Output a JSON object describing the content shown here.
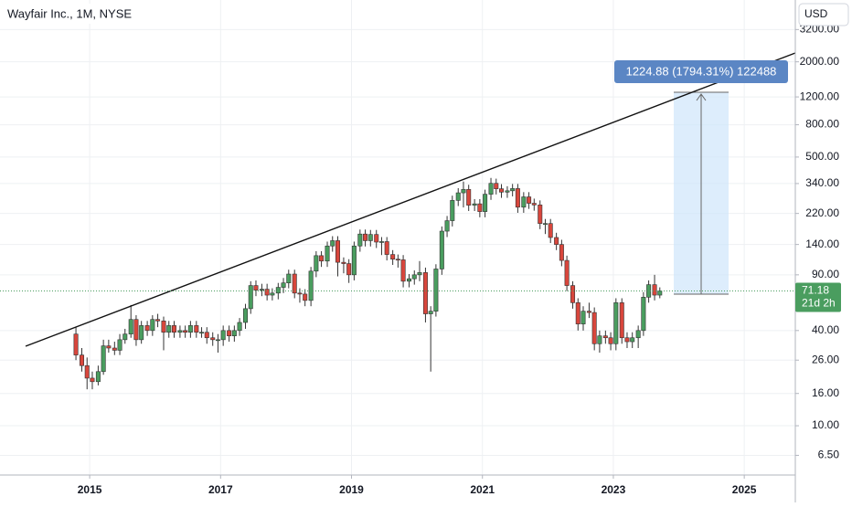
{
  "chart_data": {
    "type": "candlestick",
    "title": "Wayfair Inc., 1M, NYSE",
    "currency": "USD",
    "annotations": [
      "1224.88 (1794.31%) 122488"
    ],
    "last_price": 71.18,
    "countdown": "21d 2h",
    "log_scale": true,
    "grid": true,
    "up_color": "#4a9d5f",
    "down_color": "#d8463c",
    "wick_color": "#333333",
    "xlim": [
      2013.63,
      2025.78
    ],
    "xticks": [
      2015,
      2017,
      2019,
      2021,
      2023,
      2025
    ],
    "ylim": [
      4.88,
      4920
    ],
    "yticks": [
      {
        "value": 3200,
        "label": "3200.00"
      },
      {
        "value": 2000,
        "label": "2000.00"
      },
      {
        "value": 1200,
        "label": "1200.00"
      },
      {
        "value": 800,
        "label": "800.00"
      },
      {
        "value": 500,
        "label": "500.00"
      },
      {
        "value": 340,
        "label": "340.00"
      },
      {
        "value": 220,
        "label": "220.00"
      },
      {
        "value": 140,
        "label": "140.00"
      },
      {
        "value": 90,
        "label": "90.00"
      },
      {
        "value": 40,
        "label": "40.00"
      },
      {
        "value": 26,
        "label": "26.00"
      },
      {
        "value": 16,
        "label": "16.00"
      },
      {
        "value": 10,
        "label": "10.00"
      },
      {
        "value": 6.5,
        "label": "6.50"
      }
    ],
    "x": [
      2014.79,
      2014.88,
      2014.96,
      2015.04,
      2015.13,
      2015.21,
      2015.29,
      2015.38,
      2015.46,
      2015.54,
      2015.63,
      2015.71,
      2015.79,
      2015.88,
      2015.96,
      2016.04,
      2016.13,
      2016.21,
      2016.29,
      2016.38,
      2016.46,
      2016.54,
      2016.63,
      2016.71,
      2016.79,
      2016.88,
      2016.96,
      2017.04,
      2017.13,
      2017.21,
      2017.29,
      2017.38,
      2017.46,
      2017.54,
      2017.63,
      2017.71,
      2017.79,
      2017.88,
      2017.96,
      2018.04,
      2018.13,
      2018.21,
      2018.29,
      2018.38,
      2018.46,
      2018.54,
      2018.63,
      2018.71,
      2018.79,
      2018.88,
      2018.96,
      2019.04,
      2019.13,
      2019.21,
      2019.29,
      2019.38,
      2019.46,
      2019.54,
      2019.63,
      2019.71,
      2019.79,
      2019.88,
      2019.96,
      2020.04,
      2020.13,
      2020.21,
      2020.29,
      2020.38,
      2020.46,
      2020.54,
      2020.63,
      2020.71,
      2020.79,
      2020.88,
      2020.96,
      2021.04,
      2021.13,
      2021.21,
      2021.29,
      2021.38,
      2021.46,
      2021.54,
      2021.63,
      2021.71,
      2021.79,
      2021.88,
      2021.96,
      2022.04,
      2022.13,
      2022.21,
      2022.29,
      2022.38,
      2022.46,
      2022.54,
      2022.63,
      2022.71,
      2022.79,
      2022.88,
      2022.96,
      2023.04,
      2023.13,
      2023.21,
      2023.29,
      2023.38,
      2023.46,
      2023.54,
      2023.63,
      2023.71
    ],
    "open": [
      38,
      28,
      24,
      20,
      19,
      22,
      32,
      31,
      30,
      35,
      38,
      47,
      35,
      43,
      40,
      47,
      46,
      39,
      43,
      39,
      40,
      39,
      43,
      39,
      39,
      36,
      35,
      35,
      40,
      37,
      40,
      45,
      55,
      77,
      72,
      73,
      67,
      69,
      75,
      80,
      91,
      69,
      68,
      62,
      95,
      119,
      110,
      137,
      148,
      108,
      106,
      90,
      137,
      163,
      148,
      162,
      145,
      146,
      121,
      113,
      112,
      82,
      85,
      90,
      93,
      51,
      53,
      98,
      170,
      198,
      266,
      297,
      312,
      248,
      253,
      226,
      291,
      341,
      315,
      300,
      306,
      316,
      241,
      280,
      255,
      249,
      190,
      190,
      155,
      140,
      111,
      77,
      60,
      44,
      53,
      52,
      33,
      37,
      36,
      33,
      60,
      36,
      34,
      36,
      40,
      65,
      78,
      67
    ],
    "high": [
      42,
      31,
      27,
      22,
      24,
      35,
      35,
      34,
      38,
      41,
      58,
      50,
      46,
      46,
      50,
      51,
      49,
      46,
      46,
      43,
      43,
      46,
      46,
      42,
      42,
      39,
      38,
      43,
      43,
      43,
      48,
      59,
      82,
      83,
      79,
      79,
      74,
      80,
      86,
      97,
      97,
      74,
      73,
      101,
      127,
      127,
      146,
      158,
      158,
      116,
      113,
      146,
      174,
      174,
      173,
      173,
      156,
      156,
      129,
      121,
      120,
      91,
      96,
      110,
      100,
      57,
      105,
      182,
      212,
      285,
      318,
      350,
      334,
      271,
      271,
      311,
      369,
      365,
      337,
      327,
      338,
      338,
      300,
      300,
      273,
      266,
      203,
      203,
      166,
      150,
      119,
      82,
      64,
      57,
      60,
      56,
      40,
      40,
      39,
      64,
      64,
      39,
      39,
      43,
      70,
      83,
      90,
      75
    ],
    "low": [
      26,
      22,
      17,
      17,
      18,
      21,
      29,
      28,
      28,
      33,
      36,
      32,
      33,
      37,
      37,
      42,
      30,
      36,
      36,
      36,
      36,
      36,
      36,
      36,
      33,
      32,
      29,
      32,
      34,
      34,
      37,
      41,
      51,
      66,
      66,
      62,
      62,
      63,
      69,
      74,
      64,
      60,
      57,
      57,
      87,
      101,
      101,
      126,
      88,
      92,
      80,
      83,
      126,
      136,
      136,
      133,
      120,
      111,
      104,
      100,
      75,
      75,
      78,
      82,
      45,
      22,
      49,
      90,
      156,
      182,
      245,
      240,
      228,
      228,
      208,
      208,
      268,
      290,
      276,
      276,
      282,
      222,
      222,
      235,
      229,
      175,
      163,
      143,
      129,
      102,
      71,
      55,
      40,
      40,
      48,
      30,
      29,
      33,
      30,
      30,
      33,
      31,
      31,
      31,
      37,
      60,
      62,
      64
    ],
    "close": [
      28,
      24,
      20,
      19,
      22,
      32,
      31,
      30,
      35,
      38,
      47,
      35,
      43,
      40,
      47,
      46,
      39,
      43,
      39,
      40,
      39,
      43,
      39,
      39,
      36,
      35,
      35,
      40,
      37,
      40,
      45,
      55,
      77,
      72,
      73,
      67,
      69,
      75,
      80,
      91,
      69,
      68,
      62,
      95,
      119,
      110,
      137,
      148,
      108,
      106,
      90,
      137,
      163,
      148,
      162,
      145,
      146,
      121,
      113,
      112,
      82,
      85,
      90,
      93,
      51,
      53,
      98,
      170,
      198,
      266,
      297,
      312,
      248,
      253,
      226,
      291,
      341,
      315,
      300,
      306,
      316,
      241,
      280,
      255,
      249,
      190,
      190,
      155,
      140,
      111,
      77,
      60,
      44,
      53,
      52,
      33,
      37,
      36,
      33,
      60,
      36,
      34,
      36,
      40,
      65,
      78,
      67,
      71.18
    ]
  }
}
